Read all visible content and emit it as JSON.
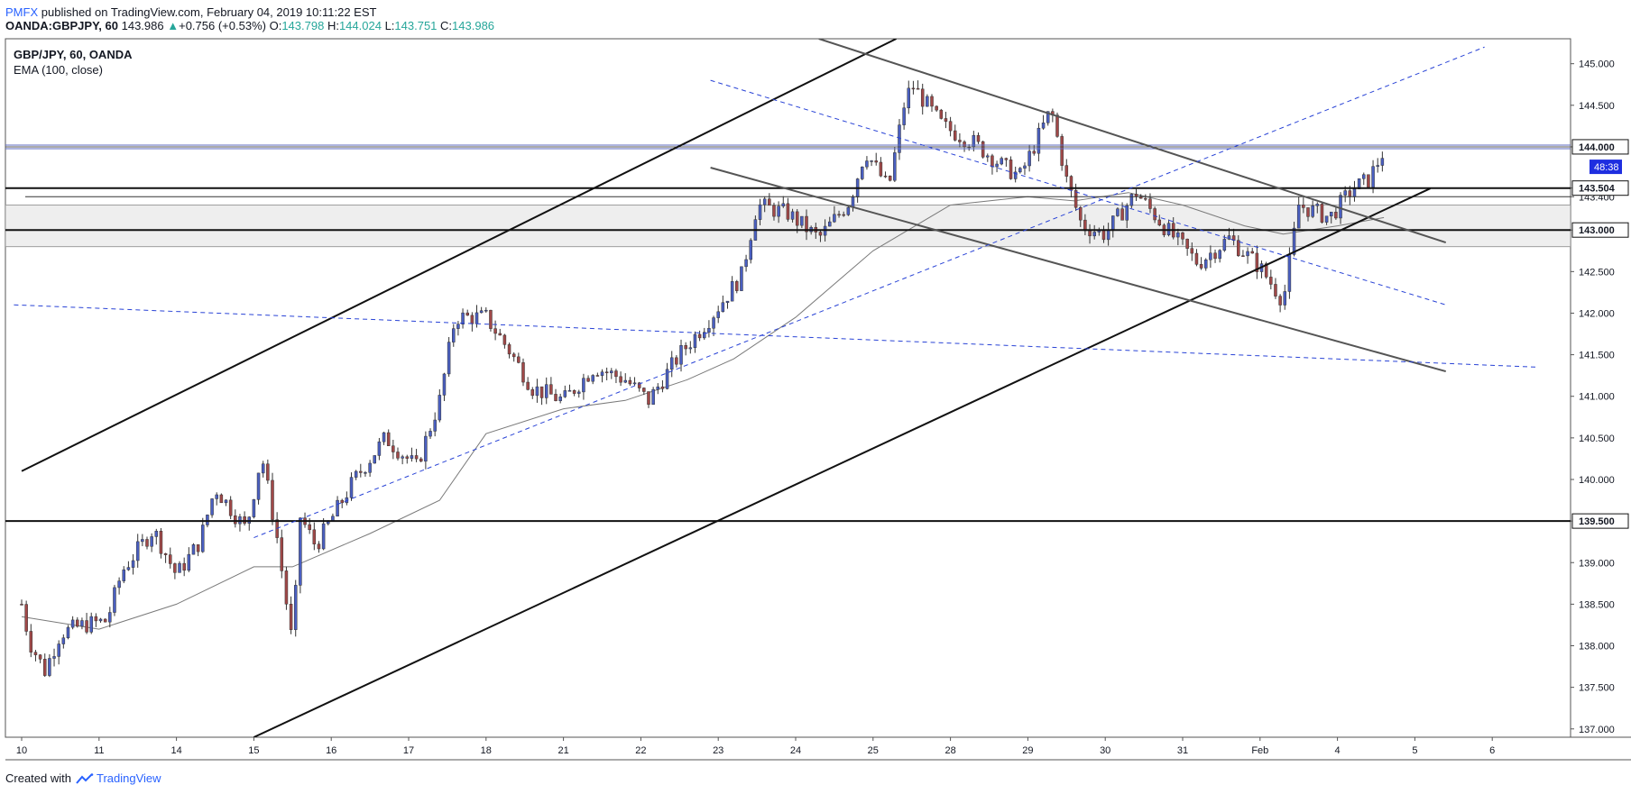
{
  "header": {
    "publisher": "PMFX",
    "published_text": "published on TradingView.com, February 04, 2019 10:11:22 EST",
    "symbol_line": "OANDA:GBPJPY, 60",
    "last_price": "143.986",
    "change": "+0.756 (+0.53%)",
    "change_arrow": "▲",
    "o_label": "O:",
    "o_value": "143.798",
    "h_label": "H:",
    "h_value": "144.024",
    "l_label": "L:",
    "l_value": "143.751",
    "c_label": "C:",
    "c_value": "143.986"
  },
  "legend": {
    "title": "GBP/JPY, 60, OANDA",
    "indicator": "EMA (100, close)"
  },
  "footer": {
    "created_with": "Created with",
    "brand": "TradingView"
  },
  "colors": {
    "up": "#26a69a",
    "down": "#ef5350",
    "candle_up_fill": "#4a5fc1",
    "candle_down_fill": "#a04848",
    "blue_line": "#2943d6",
    "label_blue": "#2962ff"
  },
  "chart_data": {
    "type": "candlestick",
    "title": "GBP/JPY, 60, OANDA",
    "indicator": "EMA (100, close)",
    "ylim": [
      136.9,
      145.3
    ],
    "y_ticks": [
      "145.000",
      "144.500",
      "144.000",
      "143.504",
      "143.400",
      "143.000",
      "142.500",
      "142.000",
      "141.500",
      "141.000",
      "140.500",
      "140.000",
      "139.500",
      "139.000",
      "138.500",
      "138.000",
      "137.500",
      "137.000"
    ],
    "y_tick_values": [
      145.0,
      144.5,
      144.0,
      143.504,
      143.4,
      143.0,
      142.5,
      142.0,
      141.5,
      141.0,
      140.5,
      140.0,
      139.5,
      139.0,
      138.5,
      138.0,
      137.5,
      137.0
    ],
    "highlighted_price_labels": [
      {
        "text": "144.000",
        "value": 144.0,
        "style": "box"
      },
      {
        "text": "143.504",
        "value": 143.504,
        "style": "box"
      },
      {
        "text": "143.000",
        "value": 143.0,
        "style": "box"
      },
      {
        "text": "139.500",
        "value": 139.5,
        "style": "box"
      }
    ],
    "countdown_label": {
      "text": "48:38",
      "value": 143.76
    },
    "x_ticks": [
      "10",
      "11",
      "14",
      "15",
      "16",
      "17",
      "18",
      "21",
      "22",
      "23",
      "24",
      "25",
      "28",
      "29",
      "30",
      "31",
      "Feb",
      "4",
      "5",
      "6"
    ],
    "x_tick_index": [
      0,
      1,
      2,
      3,
      4,
      5,
      6,
      7,
      8,
      9,
      10,
      11,
      12,
      13,
      14,
      15,
      16,
      17,
      18,
      19
    ],
    "price_path": [
      [
        0,
        138.5
      ],
      [
        0.1,
        138.05
      ],
      [
        0.3,
        137.7
      ],
      [
        0.5,
        138.15
      ],
      [
        0.8,
        138.25
      ],
      [
        1.1,
        138.3
      ],
      [
        1.3,
        138.9
      ],
      [
        1.7,
        139.4
      ],
      [
        2.0,
        138.85
      ],
      [
        2.3,
        139.25
      ],
      [
        2.5,
        139.9
      ],
      [
        2.9,
        139.4
      ],
      [
        3.1,
        140.3
      ],
      [
        3.3,
        139.3
      ],
      [
        3.5,
        138.0
      ],
      [
        3.6,
        139.55
      ],
      [
        3.8,
        139.2
      ],
      [
        4.3,
        140.0
      ],
      [
        4.7,
        140.5
      ],
      [
        5.1,
        140.15
      ],
      [
        5.4,
        140.95
      ],
      [
        5.6,
        141.95
      ],
      [
        6.0,
        141.95
      ],
      [
        6.3,
        141.55
      ],
      [
        6.6,
        141.1
      ],
      [
        7.0,
        140.95
      ],
      [
        7.4,
        141.35
      ],
      [
        7.8,
        141.2
      ],
      [
        8.1,
        140.95
      ],
      [
        8.5,
        141.5
      ],
      [
        8.9,
        141.95
      ],
      [
        9.3,
        142.45
      ],
      [
        9.5,
        143.3
      ],
      [
        9.9,
        143.2
      ],
      [
        10.3,
        142.9
      ],
      [
        10.7,
        143.35
      ],
      [
        10.9,
        143.95
      ],
      [
        11.2,
        143.5
      ],
      [
        11.4,
        144.5
      ],
      [
        11.5,
        144.75
      ],
      [
        11.9,
        144.25
      ],
      [
        12.3,
        144.05
      ],
      [
        12.7,
        143.75
      ],
      [
        12.9,
        143.65
      ],
      [
        13.3,
        144.45
      ],
      [
        13.5,
        143.6
      ],
      [
        13.7,
        143.05
      ],
      [
        14.0,
        142.95
      ],
      [
        14.4,
        143.45
      ],
      [
        14.8,
        143.0
      ],
      [
        15.2,
        142.6
      ],
      [
        15.6,
        142.9
      ],
      [
        16.0,
        142.55
      ],
      [
        16.3,
        142.15
      ],
      [
        16.5,
        143.3
      ],
      [
        16.9,
        143.15
      ],
      [
        17.2,
        143.5
      ],
      [
        17.4,
        143.6
      ],
      [
        17.6,
        143.95
      ]
    ],
    "ema_path": [
      [
        0,
        138.35
      ],
      [
        1.0,
        138.2
      ],
      [
        2.0,
        138.5
      ],
      [
        3.0,
        138.95
      ],
      [
        3.5,
        138.95
      ],
      [
        4.5,
        139.35
      ],
      [
        5.4,
        139.75
      ],
      [
        6.0,
        140.55
      ],
      [
        7.0,
        140.85
      ],
      [
        7.8,
        140.95
      ],
      [
        8.6,
        141.2
      ],
      [
        9.2,
        141.45
      ],
      [
        10.0,
        141.95
      ],
      [
        11.0,
        142.75
      ],
      [
        12.0,
        143.3
      ],
      [
        13.0,
        143.4
      ],
      [
        13.6,
        143.35
      ],
      [
        14.3,
        143.45
      ],
      [
        15.0,
        143.3
      ],
      [
        15.8,
        143.05
      ],
      [
        16.3,
        142.95
      ],
      [
        17.0,
        143.05
      ],
      [
        17.6,
        143.15
      ]
    ],
    "horizontal_levels": [
      {
        "value": 144.0,
        "style": "double-blue"
      },
      {
        "value": 143.504,
        "style": "black"
      },
      {
        "value": 143.4,
        "style": "thin-black"
      },
      {
        "value": 143.0,
        "style": "black"
      },
      {
        "value": 139.5,
        "style": "black"
      }
    ],
    "zones": [
      {
        "from": 143.3,
        "to": 143.0
      },
      {
        "from": 143.0,
        "to": 142.8
      }
    ],
    "trendlines": [
      {
        "name": "upper-channel",
        "style": "black",
        "points": [
          [
            0,
            140.1
          ],
          [
            11.3,
            145.3
          ]
        ]
      },
      {
        "name": "lower-channel",
        "style": "black",
        "points": [
          [
            3.0,
            136.9
          ],
          [
            18.2,
            143.5
          ]
        ]
      },
      {
        "name": "desc-channel-top",
        "style": "gray",
        "points": [
          [
            10.3,
            145.3
          ],
          [
            18.4,
            142.85
          ]
        ]
      },
      {
        "name": "desc-channel-bottom",
        "style": "gray",
        "points": [
          [
            8.9,
            143.75
          ],
          [
            18.4,
            141.3
          ]
        ]
      },
      {
        "name": "dashed-rising",
        "style": "blue-dashed",
        "points": [
          [
            3.0,
            139.3
          ],
          [
            18.9,
            145.2
          ]
        ]
      },
      {
        "name": "dashed-falling",
        "style": "blue-dashed",
        "points": [
          [
            8.9,
            144.8
          ],
          [
            18.4,
            142.1
          ]
        ]
      },
      {
        "name": "dashed-flat",
        "style": "blue-dashed",
        "points": [
          [
            -0.1,
            142.1
          ],
          [
            19.6,
            141.35
          ]
        ]
      }
    ]
  }
}
